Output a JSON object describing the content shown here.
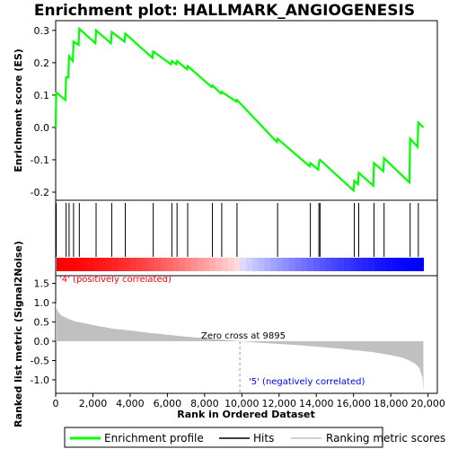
{
  "chart_data": [
    {
      "type": "line",
      "title": "Enrichment plot: HALLMARK_ANGIOGENESIS",
      "ylabel": "Enrichment score (ES)",
      "ylim": [
        -0.225,
        0.33
      ],
      "yticks": [
        0.3,
        0.2,
        0.1,
        0.0,
        -0.1,
        -0.2
      ],
      "xlim": [
        0,
        20500
      ],
      "series": [
        {
          "name": "Enrichment profile",
          "color": "#00ff00",
          "x": [
            0,
            30,
            60,
            520,
            560,
            680,
            720,
            920,
            960,
            1230,
            1270,
            2130,
            2170,
            2970,
            3010,
            3700,
            3740,
            5200,
            5240,
            6200,
            6240,
            6480,
            6520,
            7050,
            7090,
            8380,
            8420,
            8880,
            8920,
            9700,
            9740,
            11880,
            11920,
            13640,
            13680,
            14100,
            14140,
            14200,
            16000,
            16040,
            16240,
            16280,
            17060,
            17100,
            17600,
            17640,
            19000,
            19040,
            19440,
            19480,
            19750
          ],
          "y": [
            0.0,
            0.107,
            0.107,
            0.085,
            0.155,
            0.155,
            0.22,
            0.205,
            0.265,
            0.255,
            0.305,
            0.26,
            0.3,
            0.26,
            0.295,
            0.265,
            0.29,
            0.215,
            0.235,
            0.195,
            0.205,
            0.195,
            0.205,
            0.18,
            0.19,
            0.125,
            0.13,
            0.105,
            0.11,
            0.08,
            0.085,
            -0.045,
            -0.035,
            -0.12,
            -0.11,
            -0.13,
            -0.11,
            -0.1,
            -0.195,
            -0.165,
            -0.175,
            -0.14,
            -0.18,
            -0.11,
            -0.135,
            -0.095,
            -0.17,
            -0.035,
            -0.06,
            0.015,
            0.0
          ]
        }
      ]
    },
    {
      "type": "scatter",
      "series": [
        {
          "name": "Hits",
          "x": [
            30,
            560,
            720,
            960,
            1270,
            2170,
            3010,
            3740,
            5240,
            6240,
            6520,
            7090,
            8420,
            8920,
            9740,
            11920,
            13680,
            14140,
            14200,
            16040,
            16280,
            17100,
            17640,
            19040,
            19480
          ]
        }
      ]
    },
    {
      "type": "area",
      "ylabel": "Ranked list metric (Signal2Noise)",
      "xlabel": "Rank in Ordered Dataset",
      "ylim": [
        -1.35,
        1.7
      ],
      "yticks": [
        1.5,
        1.0,
        0.5,
        0.0,
        -0.5,
        -1.0
      ],
      "xlim": [
        0,
        20500
      ],
      "xticks": [
        0,
        2000,
        4000,
        6000,
        8000,
        10000,
        12000,
        14000,
        16000,
        18000,
        20000
      ],
      "xtick_labels": [
        "0",
        "2,000",
        "4,000",
        "6,000",
        "8,000",
        "10,000",
        "12,000",
        "14,000",
        "16,000",
        "18,000",
        "20,000"
      ],
      "series": [
        {
          "name": "Ranking metric scores",
          "color": "#c0c0c0",
          "x": [
            0,
            50,
            150,
            300,
            600,
            1000,
            1500,
            2000,
            3000,
            4000,
            5000,
            6000,
            7000,
            8000,
            9000,
            9895,
            11000,
            12000,
            13000,
            14000,
            15000,
            16000,
            17000,
            18000,
            18600,
            19000,
            19300,
            19550,
            19700,
            19750
          ],
          "y": [
            1.02,
            0.85,
            0.75,
            0.67,
            0.6,
            0.52,
            0.47,
            0.42,
            0.33,
            0.28,
            0.22,
            0.17,
            0.12,
            0.08,
            0.04,
            0.0,
            -0.04,
            -0.07,
            -0.1,
            -0.14,
            -0.18,
            -0.23,
            -0.28,
            -0.36,
            -0.42,
            -0.5,
            -0.58,
            -0.7,
            -0.95,
            -1.3
          ]
        }
      ],
      "annotations": {
        "pos_label": "'4' (positively correlated)",
        "neg_label": "'5' (negatively correlated)",
        "zero_cross": "Zero cross at 9895",
        "zero_cross_x": 9895
      }
    }
  ],
  "legend": {
    "items": [
      {
        "label": "Enrichment profile",
        "color": "#00ff00"
      },
      {
        "label": "Hits",
        "color": "#000000"
      },
      {
        "label": "Ranking metric scores",
        "color": "#c0c0c0"
      }
    ]
  },
  "colors": {
    "positive": "#ff0000",
    "negative": "#0000ff",
    "pos_label": "#ff0000",
    "neg_label": "#0000ff"
  }
}
